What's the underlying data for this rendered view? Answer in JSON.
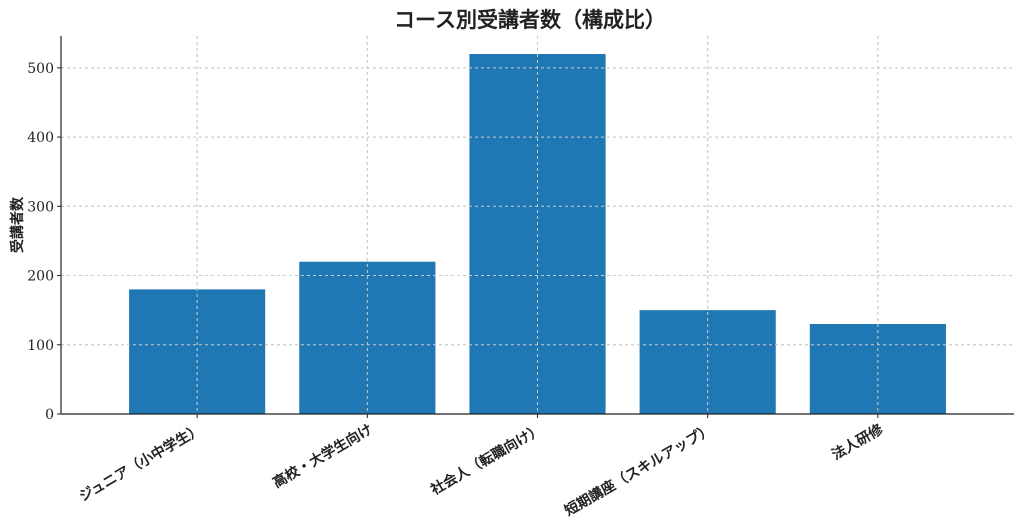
{
  "chart_data": {
    "type": "bar",
    "title": "コース別受講者数（構成比）",
    "xlabel": "",
    "ylabel": "受講者数",
    "categories": [
      "ジュニア（小中学生）",
      "高校・大学生向け",
      "社会人（転職向け）",
      "短期講座（スキルアップ）",
      "法人研修"
    ],
    "values": [
      180,
      220,
      520,
      150,
      130
    ],
    "ylim": [
      0,
      546
    ],
    "yticks": [
      "0",
      "100",
      "200",
      "300",
      "400",
      "500"
    ],
    "grid": true,
    "bar_color": "#1f77b4"
  }
}
